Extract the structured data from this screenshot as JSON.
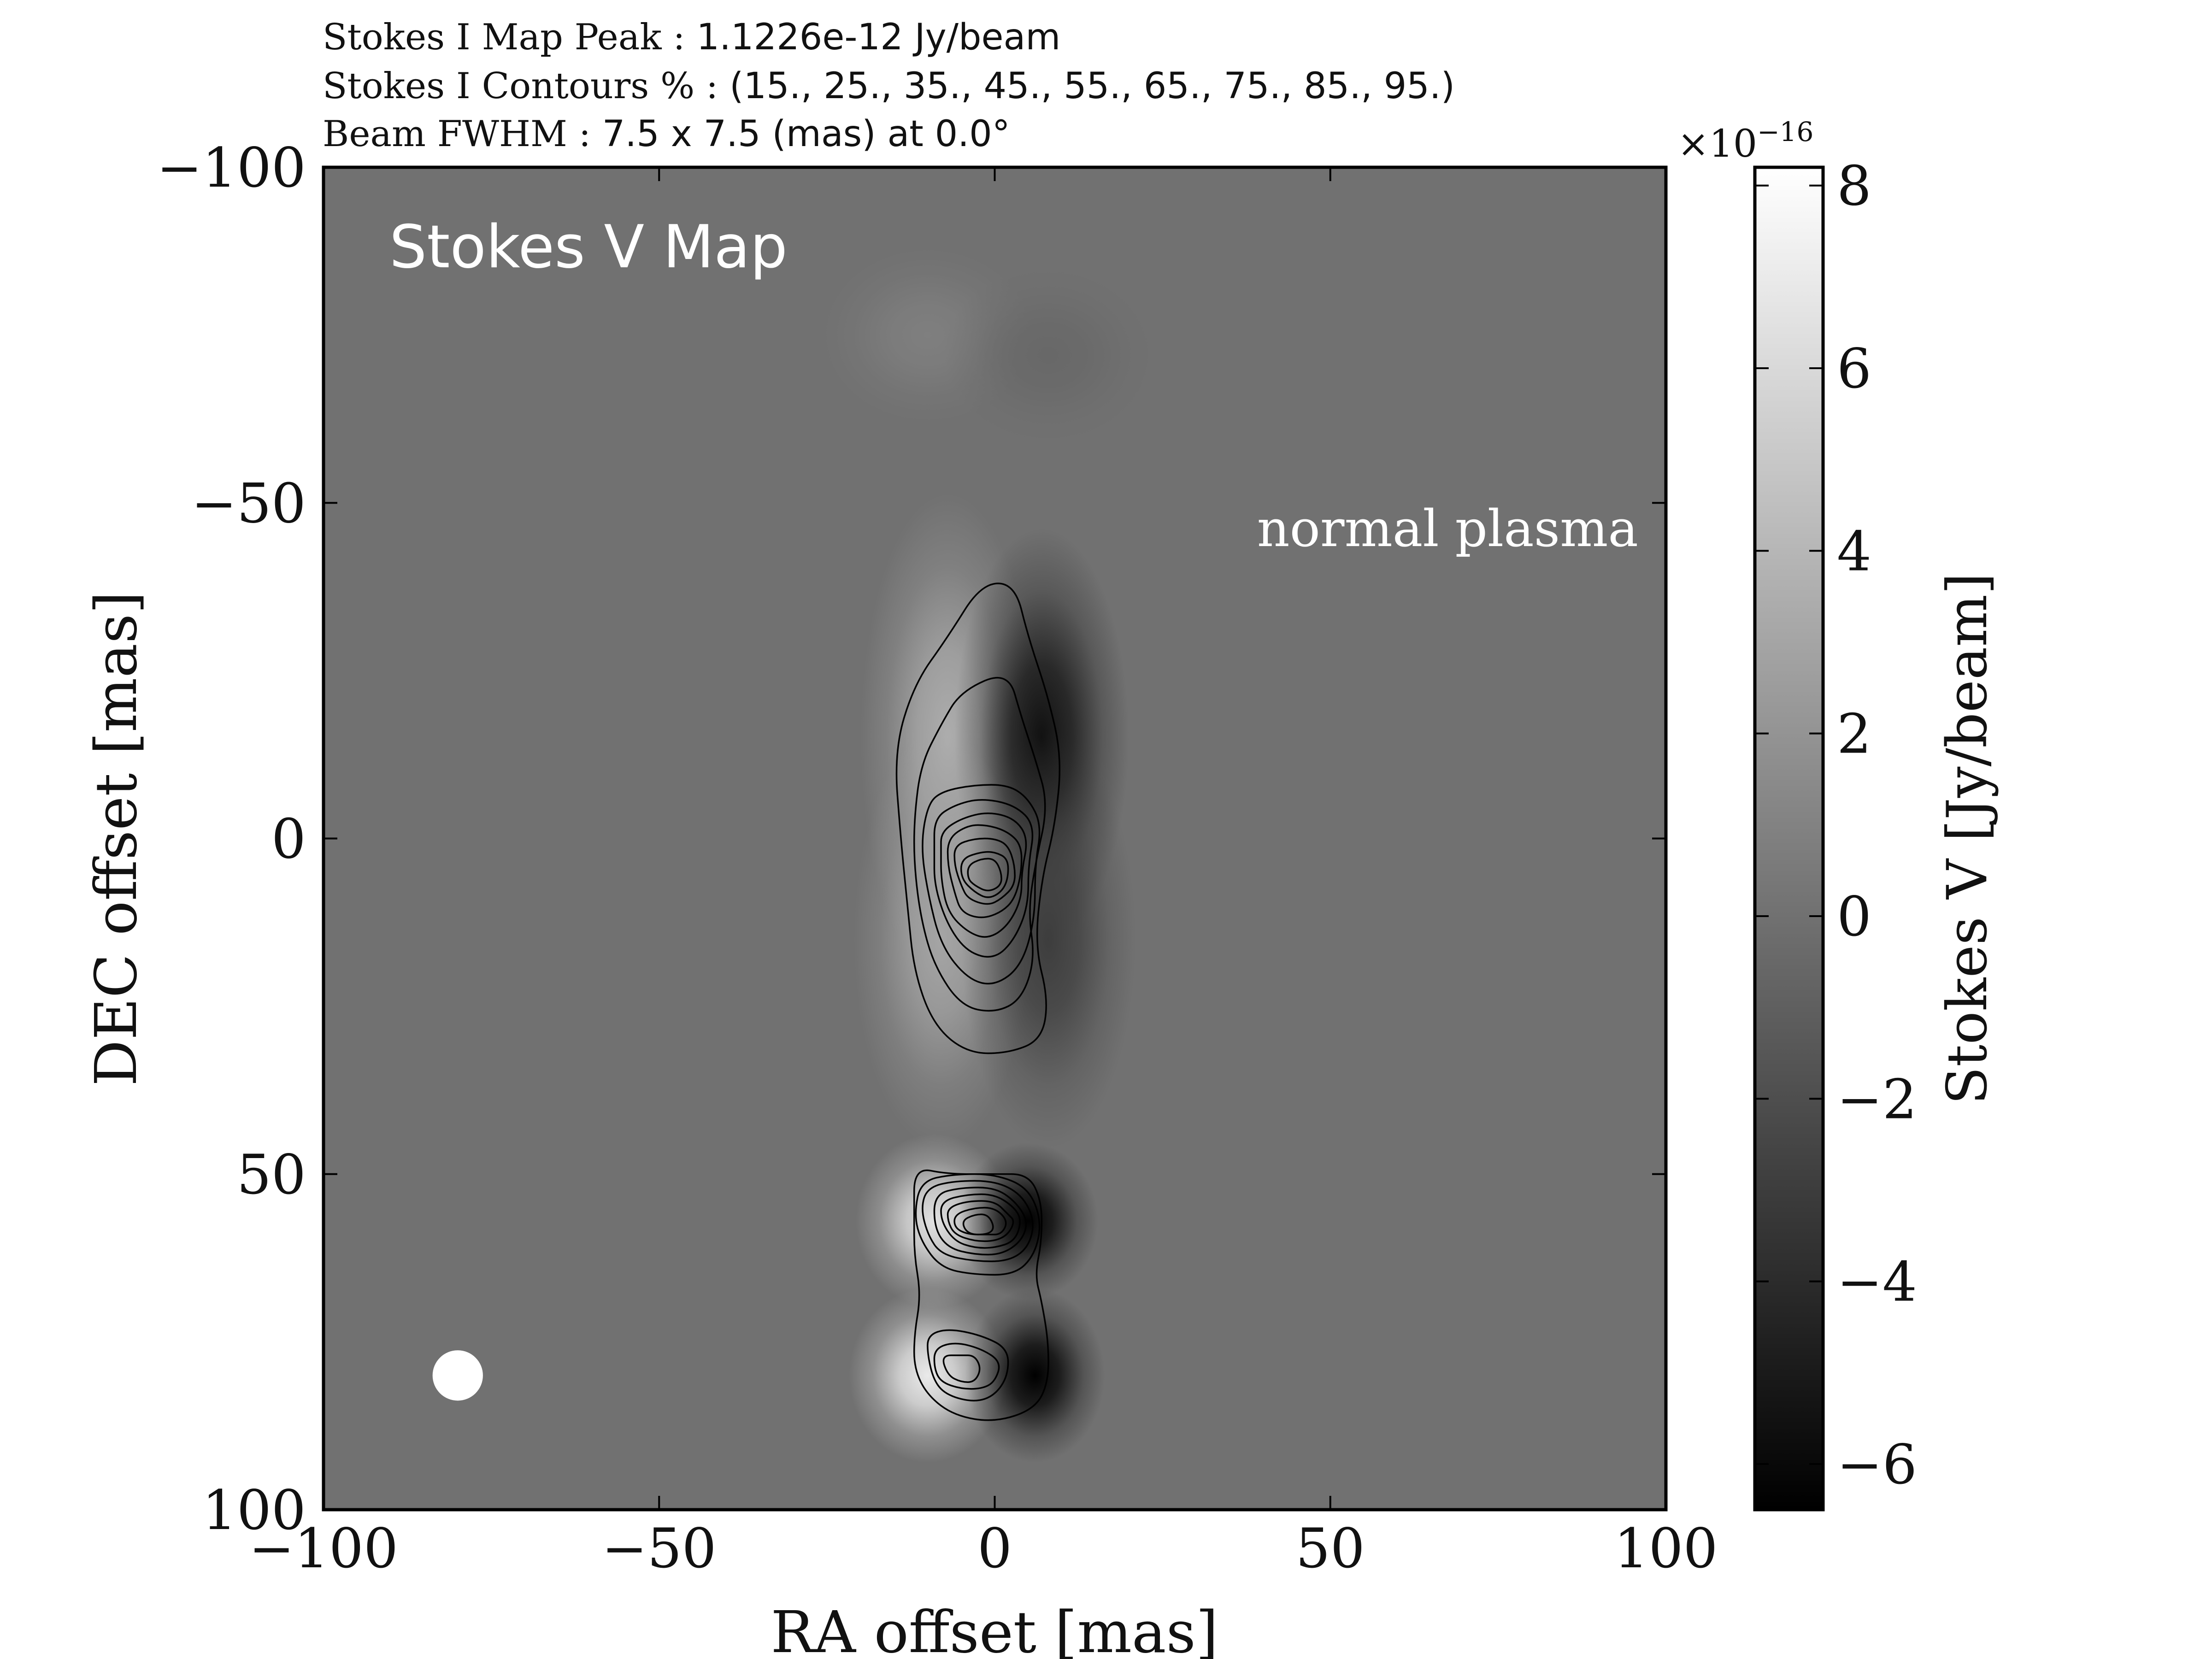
{
  "header": {
    "peak_label": "Stokes I Map Peak :",
    "peak_value": "1.1226e-12 Jy/beam",
    "contours_label": "Stokes I Contours % :",
    "contours_value": "(15., 25., 35., 45., 55., 65., 75., 85., 95.)",
    "beam_label": "Beam FWHM :",
    "beam_value": "7.5 x 7.5 (mas) at 0.0°"
  },
  "colorbar": {
    "label": "Stokes V [Jy/beam]",
    "exponent_base": "×10",
    "exponent_power": "−16",
    "ticks": [
      {
        "value": 8,
        "label": "8"
      },
      {
        "value": 6,
        "label": "6"
      },
      {
        "value": 4,
        "label": "4"
      },
      {
        "value": 2,
        "label": "2"
      },
      {
        "value": 0,
        "label": "0"
      },
      {
        "value": -2,
        "label": "−2"
      },
      {
        "value": -4,
        "label": "−4"
      },
      {
        "value": -6,
        "label": "−6"
      }
    ],
    "range": [
      -6.5,
      8.2
    ],
    "colormap": "gray"
  },
  "colors": {
    "background": "#717171",
    "contour": "#000000",
    "text_on_map": "#ffffff",
    "frame": "#000000"
  },
  "chart_data": {
    "type": "heatmap",
    "title": "Stokes V Map",
    "annotation": "normal plasma",
    "xlabel": "RA offset [mas]",
    "ylabel": "DEC offset [mas]",
    "xlim": [
      -100,
      100
    ],
    "ylim": [
      -100,
      100
    ],
    "y_inverted": true,
    "x_ticks": [
      {
        "value": -100,
        "label": "−100"
      },
      {
        "value": -50,
        "label": "−50"
      },
      {
        "value": 0,
        "label": "0"
      },
      {
        "value": 50,
        "label": "50"
      },
      {
        "value": 100,
        "label": "100"
      }
    ],
    "y_ticks": [
      {
        "value": -100,
        "label": "−100"
      },
      {
        "value": -50,
        "label": "−50"
      },
      {
        "value": 0,
        "label": "0"
      },
      {
        "value": 50,
        "label": "50"
      },
      {
        "value": 100,
        "label": "100"
      }
    ],
    "beam": {
      "ra": -80,
      "dec": 80,
      "fwhm": 7.5
    },
    "stokes_v_components": [
      {
        "ra": -7,
        "dec": -15,
        "sx": 5,
        "sy": 14,
        "amp": 3.5
      },
      {
        "ra": 7,
        "dec": -15,
        "sx": 5,
        "sy": 12,
        "amp": -5.5
      },
      {
        "ra": -8,
        "dec": 15,
        "sx": 5,
        "sy": 12,
        "amp": 3.0
      },
      {
        "ra": 8,
        "dec": 15,
        "sx": 5,
        "sy": 12,
        "amp": -3.0
      },
      {
        "ra": -9,
        "dec": 57,
        "sx": 4.5,
        "sy": 5,
        "amp": 6.5
      },
      {
        "ra": 5,
        "dec": 57,
        "sx": 4,
        "sy": 4.5,
        "amp": -7.0
      },
      {
        "ra": -10,
        "dec": 80,
        "sx": 4.5,
        "sy": 5,
        "amp": 7.0
      },
      {
        "ra": 6,
        "dec": 80,
        "sx": 4,
        "sy": 5,
        "amp": -7.0
      },
      {
        "ra": -10,
        "dec": -75,
        "sx": 6,
        "sy": 5,
        "amp": 0.8
      },
      {
        "ra": 8,
        "dec": -72,
        "sx": 6,
        "sy": 5,
        "amp": -0.5
      }
    ],
    "stokes_i_contours": [
      {
        "level": 15,
        "points": [
          [
            -15,
            -13
          ],
          [
            -12,
            -23
          ],
          [
            -7,
            -30
          ],
          [
            -2,
            -38
          ],
          [
            3,
            -38
          ],
          [
            5,
            -30
          ],
          [
            8,
            -21
          ],
          [
            10,
            -12
          ],
          [
            9,
            -2
          ],
          [
            7,
            6
          ],
          [
            6,
            16
          ],
          [
            8,
            24
          ],
          [
            7,
            30
          ],
          [
            2,
            32
          ],
          [
            -4,
            32
          ],
          [
            -9,
            28
          ],
          [
            -12,
            20
          ],
          [
            -13,
            10
          ],
          [
            -14,
            0
          ]
        ]
      },
      {
        "level": 25,
        "points": [
          [
            -11,
            -11
          ],
          [
            -8,
            -17
          ],
          [
            -5,
            -22
          ],
          [
            2,
            -25
          ],
          [
            4,
            -18
          ],
          [
            6,
            -12
          ],
          [
            8,
            -5
          ],
          [
            6,
            4
          ],
          [
            5,
            11
          ],
          [
            6,
            18
          ],
          [
            4,
            24
          ],
          [
            0,
            26
          ],
          [
            -5,
            25
          ],
          [
            -9,
            19
          ],
          [
            -11,
            12
          ],
          [
            -12,
            4
          ],
          [
            -12,
            -3
          ]
        ]
      },
      {
        "level": 35,
        "points": [
          [
            -10,
            -5
          ],
          [
            -8,
            -7
          ],
          [
            -3,
            -8
          ],
          [
            2,
            -8
          ],
          [
            5,
            -6
          ],
          [
            7,
            -2
          ],
          [
            6,
            4
          ],
          [
            6,
            12
          ],
          [
            4,
            19
          ],
          [
            0,
            22
          ],
          [
            -4,
            21
          ],
          [
            -8,
            16
          ],
          [
            -10,
            8
          ],
          [
            -11,
            1
          ]
        ]
      },
      {
        "level": 45,
        "points": [
          [
            -9,
            -3
          ],
          [
            -6,
            -5
          ],
          [
            -2,
            -6
          ],
          [
            3,
            -5
          ],
          [
            6,
            -2
          ],
          [
            5,
            4
          ],
          [
            5,
            10
          ],
          [
            3,
            15
          ],
          [
            0,
            18
          ],
          [
            -4,
            17
          ],
          [
            -7,
            13
          ],
          [
            -9,
            7
          ],
          [
            -9,
            2
          ]
        ]
      },
      {
        "level": 55,
        "points": [
          [
            -8,
            -1
          ],
          [
            -5,
            -3
          ],
          [
            -1,
            -4
          ],
          [
            3,
            -3
          ],
          [
            5,
            0
          ],
          [
            4,
            5
          ],
          [
            4,
            9
          ],
          [
            2,
            13
          ],
          [
            -1,
            15
          ],
          [
            -4,
            14
          ],
          [
            -7,
            11
          ],
          [
            -8,
            6
          ],
          [
            -8,
            2
          ]
        ]
      },
      {
        "level": 65,
        "points": [
          [
            -7,
            0
          ],
          [
            -4,
            -2
          ],
          [
            -1,
            -2
          ],
          [
            2,
            -1
          ],
          [
            4,
            1
          ],
          [
            4,
            5
          ],
          [
            3,
            9
          ],
          [
            1,
            11
          ],
          [
            -2,
            12
          ],
          [
            -5,
            11
          ],
          [
            -6,
            8
          ],
          [
            -7,
            4
          ]
        ]
      },
      {
        "level": 75,
        "points": [
          [
            -6,
            1
          ],
          [
            -3,
            0
          ],
          [
            0,
            0
          ],
          [
            2,
            1
          ],
          [
            3,
            4
          ],
          [
            3,
            7
          ],
          [
            1,
            9
          ],
          [
            -1,
            10
          ],
          [
            -4,
            9
          ],
          [
            -5,
            7
          ],
          [
            -6,
            4
          ]
        ]
      },
      {
        "level": 85,
        "points": [
          [
            -5,
            3
          ],
          [
            -2,
            2
          ],
          [
            0,
            2
          ],
          [
            2,
            3
          ],
          [
            2,
            6
          ],
          [
            1,
            8
          ],
          [
            -1,
            9
          ],
          [
            -3,
            8
          ],
          [
            -5,
            6
          ]
        ]
      },
      {
        "level": 95,
        "points": [
          [
            -4,
            4
          ],
          [
            -2,
            3
          ],
          [
            0,
            3
          ],
          [
            1,
            5
          ],
          [
            1,
            7
          ],
          [
            -1,
            8
          ],
          [
            -3,
            7
          ],
          [
            -4,
            6
          ]
        ]
      },
      {
        "level": 15,
        "points": [
          [
            -12,
            49
          ],
          [
            -7,
            50
          ],
          [
            0,
            50
          ],
          [
            5,
            50
          ],
          [
            7,
            54
          ],
          [
            7,
            60
          ],
          [
            6,
            65
          ],
          [
            7,
            69
          ],
          [
            8,
            75
          ],
          [
            8,
            81
          ],
          [
            6,
            85
          ],
          [
            0,
            87
          ],
          [
            -6,
            86
          ],
          [
            -10,
            83
          ],
          [
            -12,
            79
          ],
          [
            -12,
            74
          ],
          [
            -11,
            68
          ],
          [
            -12,
            62
          ],
          [
            -12,
            56
          ]
        ]
      },
      {
        "level": 25,
        "points": [
          [
            -11,
            51
          ],
          [
            -6,
            50
          ],
          [
            0,
            50
          ],
          [
            5,
            52
          ],
          [
            7,
            57
          ],
          [
            6,
            62
          ],
          [
            3,
            65
          ],
          [
            -3,
            65
          ],
          [
            -8,
            64
          ],
          [
            -11,
            60
          ],
          [
            -12,
            56
          ]
        ]
      },
      {
        "level": 35,
        "points": [
          [
            -10,
            52
          ],
          [
            -6,
            51
          ],
          [
            0,
            51
          ],
          [
            4,
            53
          ],
          [
            6,
            57
          ],
          [
            5,
            61
          ],
          [
            2,
            63
          ],
          [
            -3,
            63
          ],
          [
            -8,
            62
          ],
          [
            -10,
            59
          ],
          [
            -11,
            55
          ]
        ]
      },
      {
        "level": 45,
        "points": [
          [
            -9,
            53
          ],
          [
            -5,
            52
          ],
          [
            0,
            52
          ],
          [
            3,
            54
          ],
          [
            5,
            57
          ],
          [
            4,
            60
          ],
          [
            1,
            62
          ],
          [
            -3,
            62
          ],
          [
            -7,
            61
          ],
          [
            -9,
            58
          ]
        ]
      },
      {
        "level": 55,
        "points": [
          [
            -8,
            54
          ],
          [
            -4,
            53
          ],
          [
            0,
            53
          ],
          [
            3,
            55
          ],
          [
            4,
            57
          ],
          [
            3,
            60
          ],
          [
            0,
            61
          ],
          [
            -3,
            61
          ],
          [
            -6,
            60
          ],
          [
            -8,
            57
          ]
        ]
      },
      {
        "level": 65,
        "points": [
          [
            -7,
            55
          ],
          [
            -4,
            54
          ],
          [
            0,
            54
          ],
          [
            2,
            56
          ],
          [
            3,
            57
          ],
          [
            2,
            59
          ],
          [
            0,
            60
          ],
          [
            -3,
            60
          ],
          [
            -6,
            59
          ],
          [
            -7,
            57
          ]
        ]
      },
      {
        "level": 75,
        "points": [
          [
            -6,
            56
          ],
          [
            -3,
            55
          ],
          [
            0,
            55
          ],
          [
            2,
            57
          ],
          [
            1,
            59
          ],
          [
            -1,
            59
          ],
          [
            -4,
            59
          ],
          [
            -6,
            58
          ]
        ]
      },
      {
        "level": 85,
        "points": [
          [
            -5,
            57
          ],
          [
            -3,
            56
          ],
          [
            -1,
            56
          ],
          [
            0,
            58
          ],
          [
            -1,
            59
          ],
          [
            -4,
            59
          ]
        ]
      },
      {
        "level": 25,
        "points": [
          [
            -10,
            74
          ],
          [
            -7,
            73
          ],
          [
            -2,
            74
          ],
          [
            2,
            76
          ],
          [
            2,
            80
          ],
          [
            0,
            83
          ],
          [
            -3,
            84
          ],
          [
            -7,
            83
          ],
          [
            -9,
            81
          ],
          [
            -10,
            77
          ]
        ]
      },
      {
        "level": 35,
        "points": [
          [
            -9,
            76
          ],
          [
            -6,
            75
          ],
          [
            -2,
            76
          ],
          [
            1,
            78
          ],
          [
            0,
            81
          ],
          [
            -2,
            82
          ],
          [
            -5,
            82
          ],
          [
            -8,
            81
          ],
          [
            -9,
            79
          ]
        ]
      },
      {
        "level": 45,
        "points": [
          [
            -8,
            77
          ],
          [
            -5,
            77
          ],
          [
            -3,
            77
          ],
          [
            -2,
            79
          ],
          [
            -3,
            81
          ],
          [
            -5,
            81
          ],
          [
            -7,
            80
          ]
        ]
      }
    ]
  }
}
